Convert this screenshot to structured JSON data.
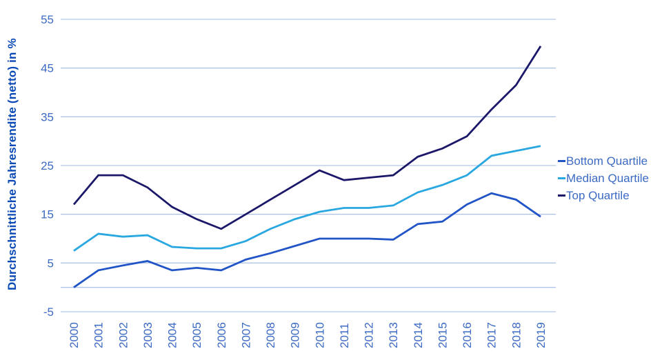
{
  "chart_data": {
    "type": "line",
    "title": "",
    "ylabel": "Durchschnittliche Jahresrendite (netto) in %",
    "xlabel": "",
    "ylim": [
      -5,
      55
    ],
    "yticks": [
      55,
      45,
      35,
      25,
      15,
      5,
      -5
    ],
    "zero_baseline": true,
    "grid": "horizontal",
    "legend_position": "right",
    "x": [
      "2000",
      "2001",
      "2002",
      "2003",
      "2004",
      "2005",
      "2006",
      "2007",
      "2008",
      "2009",
      "2010",
      "2011",
      "2012",
      "2013",
      "2014",
      "2015",
      "2016",
      "2017",
      "2018",
      "2019"
    ],
    "series": [
      {
        "name": "Bottom Quartile",
        "color": "#2154c6",
        "values": [
          0,
          3.5,
          4.5,
          5.4,
          3.5,
          4,
          3.5,
          5.7,
          7,
          8.5,
          10,
          10,
          10,
          9.8,
          13,
          13.5,
          17,
          19.3,
          18,
          14.5
        ]
      },
      {
        "name": "Median Quartile",
        "color": "#28a7e0",
        "values": [
          7.5,
          11,
          10.4,
          10.7,
          8.3,
          8,
          8,
          9.5,
          12,
          14,
          15.5,
          16.3,
          16.3,
          16.8,
          19.5,
          21,
          23,
          27,
          28,
          29
        ]
      },
      {
        "name": "Top Quartile",
        "color": "#1b1769",
        "values": [
          17,
          23,
          23,
          20.5,
          16.5,
          14,
          12,
          15,
          18,
          21,
          24,
          22,
          22.5,
          23,
          26.8,
          28.5,
          31,
          36.5,
          41.5,
          49.5
        ]
      }
    ]
  },
  "colors": {
    "background": "#ffffff",
    "axis_text": "#3c6ac4",
    "ylabel_text": "#0b4ab6",
    "gridline": "#b1c5e8"
  }
}
